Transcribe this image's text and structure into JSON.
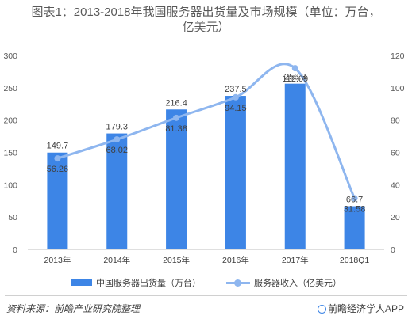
{
  "title_line1": "图表1：2013-2018年我国服务器出货量及市场规模（单位：万台，",
  "title_line2": "亿美元）",
  "chart_data": {
    "type": "bar+line",
    "categories": [
      "2013年",
      "2014年",
      "2015年",
      "2016年",
      "2017年",
      "2018Q1"
    ],
    "series": [
      {
        "name": "中国服务器出货量（万台）",
        "type": "bar",
        "axis": "left",
        "values": [
          149.7,
          179.3,
          216.4,
          237.5,
          256.3,
          66.7
        ],
        "color": "#3d85e6"
      },
      {
        "name": "服务器收入（亿美元）",
        "type": "line",
        "smooth": true,
        "axis": "right",
        "values": [
          56.26,
          68.02,
          81.38,
          94.15,
          112.09,
          31.58
        ],
        "color": "#8eb6ef"
      }
    ],
    "y_left": {
      "min": 0,
      "max": 300,
      "ticks": [
        0,
        50,
        100,
        150,
        200,
        250,
        300
      ]
    },
    "y_right": {
      "min": 0,
      "max": 120,
      "ticks": [
        0,
        20,
        40,
        60,
        80,
        100,
        120
      ]
    },
    "grid": false,
    "legend": "bottom"
  },
  "footer": {
    "source": "资料来源：前瞻产业研究院整理",
    "brand": "前瞻经济学人APP",
    "brand_icon": "brand-logo-icon"
  }
}
